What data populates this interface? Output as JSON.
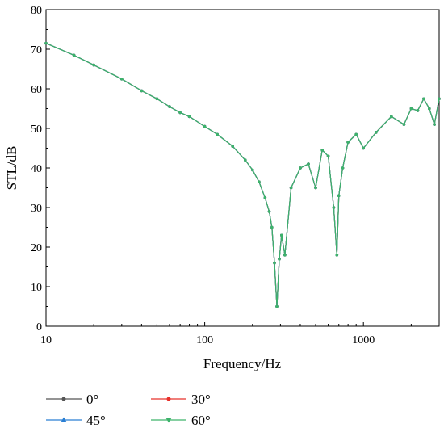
{
  "chart_data": {
    "type": "line",
    "xlabel": "Frequency/Hz",
    "ylabel": "STL/dB",
    "xscale": "log",
    "xlim": [
      10,
      3000
    ],
    "ylim": [
      0,
      80
    ],
    "xticks": [
      10,
      100,
      1000
    ],
    "xtick_labels": [
      "10",
      "100",
      "1000"
    ],
    "yticks": [
      0,
      10,
      20,
      30,
      40,
      50,
      60,
      70,
      80
    ],
    "ytick_labels": [
      "0",
      "10",
      "20",
      "30",
      "40",
      "50",
      "60",
      "70",
      "80"
    ],
    "grid": false,
    "legend_position": "bottom",
    "series": [
      {
        "name": "0°",
        "color": "#555555",
        "marker": "circle"
      },
      {
        "name": "30°",
        "color": "#e8302a",
        "marker": "circle"
      },
      {
        "name": "45°",
        "color": "#2a7fd4",
        "marker": "triangle"
      },
      {
        "name": "60°",
        "color": "#3db36b",
        "marker": "triangle-down"
      }
    ],
    "x": [
      10,
      15,
      20,
      30,
      40,
      50,
      60,
      70,
      80,
      100,
      120,
      150,
      180,
      200,
      220,
      240,
      255,
      265,
      275,
      285,
      295,
      305,
      320,
      350,
      400,
      450,
      500,
      550,
      600,
      650,
      680,
      700,
      740,
      800,
      900,
      1000,
      1200,
      1500,
      1800,
      2000,
      2200,
      2400,
      2600,
      2800,
      3000
    ],
    "values": [
      71.5,
      68.5,
      66,
      62.5,
      59.5,
      57.5,
      55.5,
      54,
      53,
      50.5,
      48.5,
      45.5,
      42,
      39.5,
      36.5,
      32.5,
      29,
      25,
      16,
      5,
      17,
      23,
      18,
      35,
      40,
      41,
      35,
      44.5,
      43,
      30,
      18,
      33,
      40,
      46.5,
      48.5,
      45,
      49,
      53,
      51,
      55,
      54.5,
      57.5,
      55,
      51,
      57.5
    ]
  }
}
